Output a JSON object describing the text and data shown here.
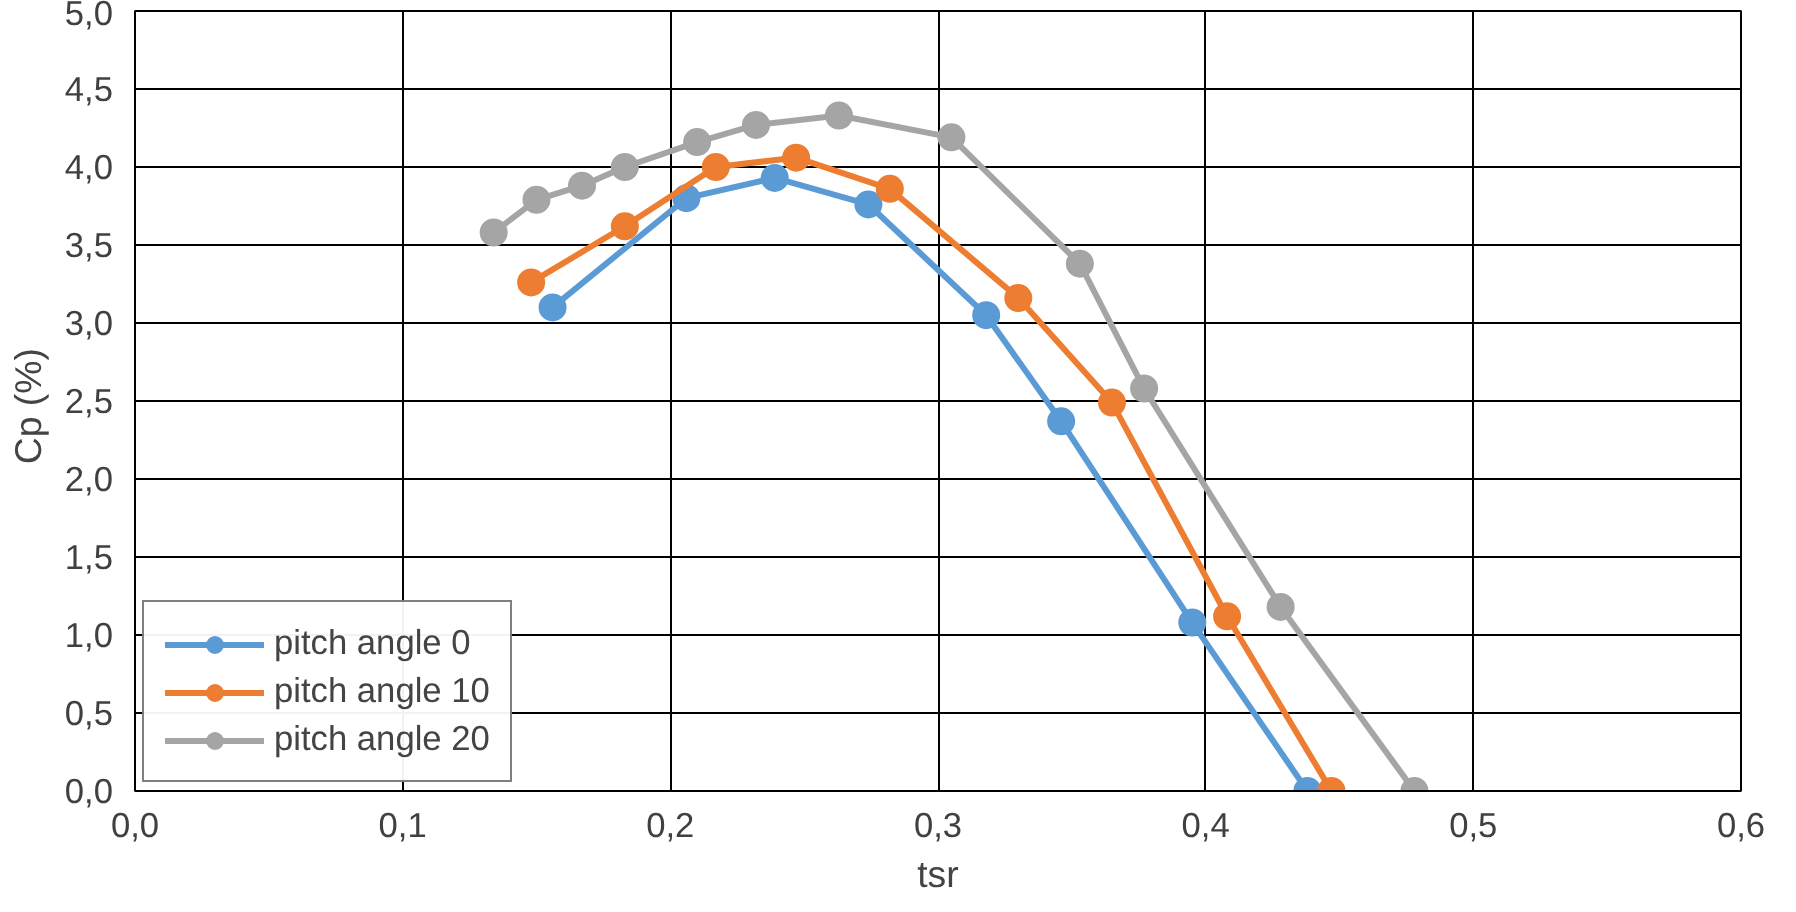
{
  "chart_data": {
    "type": "line",
    "xlabel": "tsr",
    "ylabel": "Cp  (%)",
    "xlim": [
      0,
      0.6
    ],
    "ylim": [
      0,
      5
    ],
    "xticks": [
      {
        "value": 0,
        "label": "0,0"
      },
      {
        "value": 0.1,
        "label": "0,1"
      },
      {
        "value": 0.2,
        "label": "0,2"
      },
      {
        "value": 0.3,
        "label": "0,3"
      },
      {
        "value": 0.4,
        "label": "0,4"
      },
      {
        "value": 0.5,
        "label": "0,5"
      },
      {
        "value": 0.6,
        "label": "0,6"
      }
    ],
    "yticks": [
      {
        "value": 0,
        "label": "0,0"
      },
      {
        "value": 0.5,
        "label": "0,5"
      },
      {
        "value": 1,
        "label": "1,0"
      },
      {
        "value": 1.5,
        "label": "1,5"
      },
      {
        "value": 2,
        "label": "2,0"
      },
      {
        "value": 2.5,
        "label": "2,5"
      },
      {
        "value": 3,
        "label": "3,0"
      },
      {
        "value": 3.5,
        "label": "3,5"
      },
      {
        "value": 4,
        "label": "4,0"
      },
      {
        "value": 4.5,
        "label": "4,5"
      },
      {
        "value": 5,
        "label": "5,0"
      }
    ],
    "grid": true,
    "legend": "bottom left",
    "marker": "circle",
    "line_style": "solid",
    "series": [
      {
        "name": "pitch angle 0",
        "color": "#5b9bd5",
        "x": [
          0.156,
          0.206,
          0.239,
          0.274,
          0.318,
          0.346,
          0.395,
          0.438
        ],
        "values": [
          3.1,
          3.8,
          3.93,
          3.76,
          3.05,
          2.37,
          1.08,
          0
        ]
      },
      {
        "name": "pitch angle 10",
        "color": "#ed7d31",
        "x": [
          0.148,
          0.183,
          0.217,
          0.247,
          0.282,
          0.33,
          0.365,
          0.408,
          0.447
        ],
        "values": [
          3.26,
          3.62,
          4.0,
          4.06,
          3.86,
          3.16,
          2.49,
          1.12,
          0
        ]
      },
      {
        "name": "pitch angle 20",
        "color": "#a5a5a5",
        "x": [
          0.134,
          0.15,
          0.167,
          0.183,
          0.21,
          0.232,
          0.263,
          0.305,
          0.353,
          0.377,
          0.428,
          0.478
        ],
        "values": [
          3.58,
          3.79,
          3.88,
          4.0,
          4.16,
          4.27,
          4.33,
          4.19,
          3.38,
          2.58,
          1.18,
          0
        ]
      }
    ]
  }
}
